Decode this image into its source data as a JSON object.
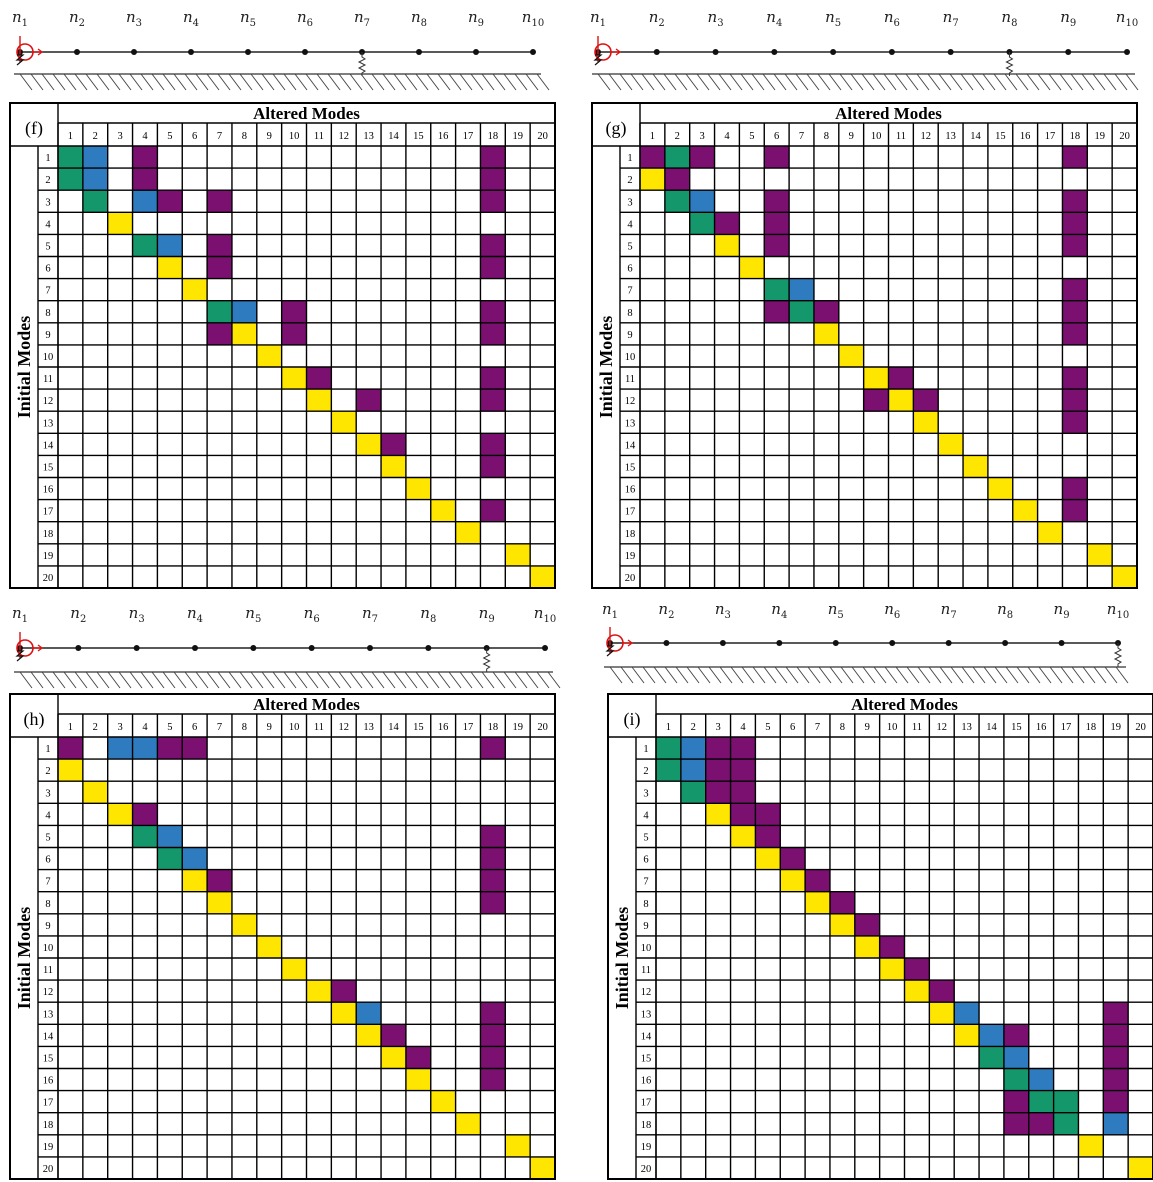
{
  "colors": {
    "green": "#14976a",
    "blue": "#2f7bbf",
    "purple": "#7b1070",
    "yellow": "#ffe600"
  },
  "column_title": "Altered Modes",
  "row_title": "Initial Modes",
  "node_labels": [
    "n1",
    "n2",
    "n3",
    "n4",
    "n5",
    "n6",
    "n7",
    "n8",
    "n9",
    "n10"
  ],
  "col_numbers": [
    "1",
    "2",
    "3",
    "4",
    "5",
    "6",
    "7",
    "8",
    "9",
    "10",
    "11",
    "12",
    "13",
    "14",
    "15",
    "16",
    "17",
    "18",
    "19",
    "20"
  ],
  "row_numbers": [
    "1",
    "2",
    "3",
    "4",
    "5",
    "6",
    "7",
    "8",
    "9",
    "10",
    "11",
    "12",
    "13",
    "14",
    "15",
    "16",
    "17",
    "18",
    "19",
    "20"
  ],
  "panels": [
    {
      "label": "(f)",
      "spring_node": 7,
      "cells": [
        [
          1,
          1,
          "green"
        ],
        [
          1,
          2,
          "blue"
        ],
        [
          1,
          4,
          "purple"
        ],
        [
          1,
          18,
          "purple"
        ],
        [
          2,
          1,
          "green"
        ],
        [
          2,
          2,
          "blue"
        ],
        [
          2,
          4,
          "purple"
        ],
        [
          2,
          18,
          "purple"
        ],
        [
          3,
          2,
          "green"
        ],
        [
          3,
          4,
          "blue"
        ],
        [
          3,
          5,
          "purple"
        ],
        [
          3,
          7,
          "purple"
        ],
        [
          3,
          18,
          "purple"
        ],
        [
          4,
          3,
          "yellow"
        ],
        [
          5,
          4,
          "green"
        ],
        [
          5,
          5,
          "blue"
        ],
        [
          5,
          7,
          "purple"
        ],
        [
          5,
          18,
          "purple"
        ],
        [
          6,
          5,
          "yellow"
        ],
        [
          6,
          7,
          "purple"
        ],
        [
          6,
          18,
          "purple"
        ],
        [
          7,
          6,
          "yellow"
        ],
        [
          8,
          7,
          "green"
        ],
        [
          8,
          8,
          "blue"
        ],
        [
          8,
          10,
          "purple"
        ],
        [
          8,
          18,
          "purple"
        ],
        [
          9,
          7,
          "purple"
        ],
        [
          9,
          8,
          "yellow"
        ],
        [
          9,
          10,
          "purple"
        ],
        [
          9,
          18,
          "purple"
        ],
        [
          10,
          9,
          "yellow"
        ],
        [
          11,
          10,
          "yellow"
        ],
        [
          11,
          11,
          "purple"
        ],
        [
          11,
          18,
          "purple"
        ],
        [
          12,
          11,
          "yellow"
        ],
        [
          12,
          13,
          "purple"
        ],
        [
          12,
          18,
          "purple"
        ],
        [
          13,
          12,
          "yellow"
        ],
        [
          14,
          13,
          "yellow"
        ],
        [
          14,
          14,
          "purple"
        ],
        [
          14,
          18,
          "purple"
        ],
        [
          15,
          14,
          "yellow"
        ],
        [
          15,
          18,
          "purple"
        ],
        [
          16,
          15,
          "yellow"
        ],
        [
          17,
          16,
          "yellow"
        ],
        [
          17,
          18,
          "purple"
        ],
        [
          18,
          17,
          "yellow"
        ],
        [
          19,
          19,
          "yellow"
        ],
        [
          20,
          20,
          "yellow"
        ]
      ]
    },
    {
      "label": "(g)",
      "spring_node": 8,
      "cells": [
        [
          1,
          1,
          "purple"
        ],
        [
          1,
          2,
          "green"
        ],
        [
          1,
          3,
          "purple"
        ],
        [
          1,
          6,
          "purple"
        ],
        [
          1,
          18,
          "purple"
        ],
        [
          2,
          1,
          "yellow"
        ],
        [
          2,
          2,
          "purple"
        ],
        [
          3,
          2,
          "green"
        ],
        [
          3,
          3,
          "blue"
        ],
        [
          3,
          6,
          "purple"
        ],
        [
          3,
          18,
          "purple"
        ],
        [
          4,
          3,
          "green"
        ],
        [
          4,
          4,
          "purple"
        ],
        [
          4,
          6,
          "purple"
        ],
        [
          4,
          18,
          "purple"
        ],
        [
          5,
          4,
          "yellow"
        ],
        [
          5,
          6,
          "purple"
        ],
        [
          5,
          18,
          "purple"
        ],
        [
          6,
          5,
          "yellow"
        ],
        [
          7,
          6,
          "green"
        ],
        [
          7,
          7,
          "blue"
        ],
        [
          7,
          18,
          "purple"
        ],
        [
          8,
          6,
          "purple"
        ],
        [
          8,
          7,
          "green"
        ],
        [
          8,
          8,
          "purple"
        ],
        [
          8,
          18,
          "purple"
        ],
        [
          9,
          8,
          "yellow"
        ],
        [
          9,
          18,
          "purple"
        ],
        [
          10,
          9,
          "yellow"
        ],
        [
          11,
          10,
          "yellow"
        ],
        [
          11,
          11,
          "purple"
        ],
        [
          11,
          18,
          "purple"
        ],
        [
          12,
          10,
          "purple"
        ],
        [
          12,
          11,
          "yellow"
        ],
        [
          12,
          12,
          "purple"
        ],
        [
          12,
          18,
          "purple"
        ],
        [
          13,
          12,
          "yellow"
        ],
        [
          13,
          18,
          "purple"
        ],
        [
          14,
          13,
          "yellow"
        ],
        [
          15,
          14,
          "yellow"
        ],
        [
          16,
          15,
          "yellow"
        ],
        [
          16,
          18,
          "purple"
        ],
        [
          17,
          16,
          "yellow"
        ],
        [
          17,
          18,
          "purple"
        ],
        [
          18,
          17,
          "yellow"
        ],
        [
          19,
          19,
          "yellow"
        ],
        [
          20,
          20,
          "yellow"
        ]
      ]
    },
    {
      "label": "(h)",
      "spring_node": 9,
      "cells": [
        [
          1,
          1,
          "purple"
        ],
        [
          1,
          3,
          "blue"
        ],
        [
          1,
          4,
          "blue"
        ],
        [
          1,
          5,
          "purple"
        ],
        [
          1,
          6,
          "purple"
        ],
        [
          1,
          18,
          "purple"
        ],
        [
          2,
          1,
          "yellow"
        ],
        [
          3,
          2,
          "yellow"
        ],
        [
          4,
          3,
          "yellow"
        ],
        [
          4,
          4,
          "purple"
        ],
        [
          5,
          4,
          "green"
        ],
        [
          5,
          5,
          "blue"
        ],
        [
          5,
          18,
          "purple"
        ],
        [
          6,
          5,
          "green"
        ],
        [
          6,
          6,
          "blue"
        ],
        [
          6,
          18,
          "purple"
        ],
        [
          7,
          6,
          "yellow"
        ],
        [
          7,
          7,
          "purple"
        ],
        [
          7,
          18,
          "purple"
        ],
        [
          8,
          7,
          "yellow"
        ],
        [
          8,
          18,
          "purple"
        ],
        [
          9,
          8,
          "yellow"
        ],
        [
          10,
          9,
          "yellow"
        ],
        [
          11,
          10,
          "yellow"
        ],
        [
          12,
          11,
          "yellow"
        ],
        [
          12,
          12,
          "purple"
        ],
        [
          13,
          12,
          "yellow"
        ],
        [
          13,
          13,
          "blue"
        ],
        [
          13,
          18,
          "purple"
        ],
        [
          14,
          13,
          "yellow"
        ],
        [
          14,
          14,
          "purple"
        ],
        [
          14,
          18,
          "purple"
        ],
        [
          15,
          14,
          "yellow"
        ],
        [
          15,
          15,
          "purple"
        ],
        [
          15,
          18,
          "purple"
        ],
        [
          16,
          15,
          "yellow"
        ],
        [
          16,
          18,
          "purple"
        ],
        [
          17,
          16,
          "yellow"
        ],
        [
          18,
          17,
          "yellow"
        ],
        [
          19,
          19,
          "yellow"
        ],
        [
          20,
          20,
          "yellow"
        ]
      ]
    },
    {
      "label": "(i)",
      "spring_node": 10,
      "cells": [
        [
          1,
          1,
          "green"
        ],
        [
          1,
          2,
          "blue"
        ],
        [
          1,
          3,
          "purple"
        ],
        [
          1,
          4,
          "purple"
        ],
        [
          2,
          1,
          "green"
        ],
        [
          2,
          2,
          "blue"
        ],
        [
          2,
          3,
          "purple"
        ],
        [
          2,
          4,
          "purple"
        ],
        [
          3,
          2,
          "green"
        ],
        [
          3,
          3,
          "purple"
        ],
        [
          3,
          4,
          "purple"
        ],
        [
          4,
          3,
          "yellow"
        ],
        [
          4,
          4,
          "purple"
        ],
        [
          4,
          5,
          "purple"
        ],
        [
          5,
          4,
          "yellow"
        ],
        [
          5,
          5,
          "purple"
        ],
        [
          6,
          5,
          "yellow"
        ],
        [
          6,
          6,
          "purple"
        ],
        [
          7,
          6,
          "yellow"
        ],
        [
          7,
          7,
          "purple"
        ],
        [
          8,
          7,
          "yellow"
        ],
        [
          8,
          8,
          "purple"
        ],
        [
          9,
          8,
          "yellow"
        ],
        [
          9,
          9,
          "purple"
        ],
        [
          10,
          9,
          "yellow"
        ],
        [
          10,
          10,
          "purple"
        ],
        [
          11,
          10,
          "yellow"
        ],
        [
          11,
          11,
          "purple"
        ],
        [
          12,
          11,
          "yellow"
        ],
        [
          12,
          12,
          "purple"
        ],
        [
          13,
          12,
          "yellow"
        ],
        [
          13,
          13,
          "blue"
        ],
        [
          13,
          19,
          "purple"
        ],
        [
          14,
          13,
          "yellow"
        ],
        [
          14,
          14,
          "blue"
        ],
        [
          14,
          15,
          "purple"
        ],
        [
          14,
          19,
          "purple"
        ],
        [
          15,
          14,
          "green"
        ],
        [
          15,
          15,
          "blue"
        ],
        [
          15,
          19,
          "purple"
        ],
        [
          16,
          15,
          "green"
        ],
        [
          16,
          16,
          "blue"
        ],
        [
          16,
          19,
          "purple"
        ],
        [
          17,
          15,
          "purple"
        ],
        [
          17,
          16,
          "green"
        ],
        [
          17,
          17,
          "green"
        ],
        [
          17,
          19,
          "purple"
        ],
        [
          18,
          15,
          "purple"
        ],
        [
          18,
          16,
          "purple"
        ],
        [
          18,
          17,
          "green"
        ],
        [
          18,
          19,
          "blue"
        ],
        [
          19,
          18,
          "yellow"
        ],
        [
          20,
          20,
          "yellow"
        ]
      ]
    }
  ]
}
